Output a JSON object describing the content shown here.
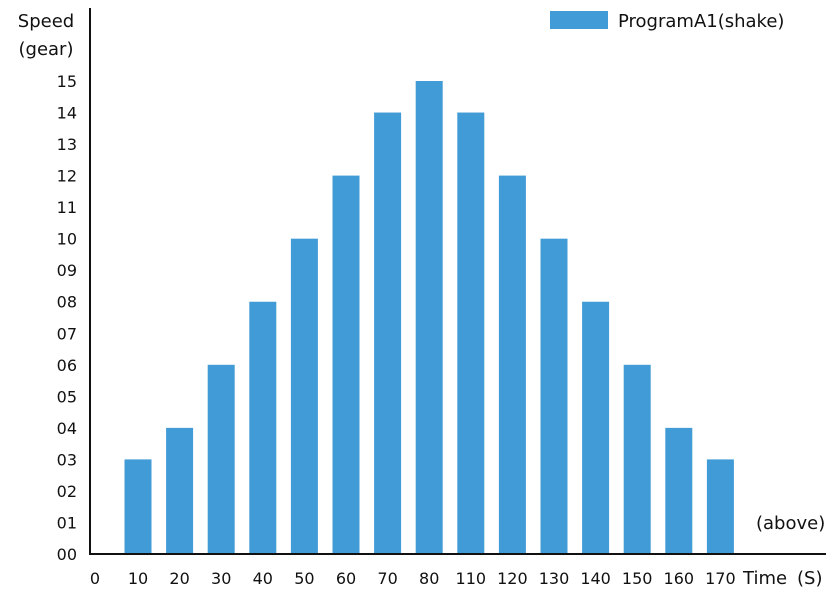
{
  "chart_data": {
    "type": "bar",
    "title": "",
    "ylabel_lines": [
      "Speed",
      "(gear)"
    ],
    "xlabel": "Time",
    "xlabel_unit": "(S)",
    "annotation": "(above)",
    "origin_label": "0",
    "categories": [
      "10",
      "20",
      "30",
      "40",
      "50",
      "60",
      "70",
      "80",
      "110",
      "120",
      "130",
      "140",
      "150",
      "160",
      "170"
    ],
    "series": [
      {
        "name": "ProgramA1(shake)",
        "color": "#419bd6",
        "values": [
          3,
          4,
          6,
          8,
          10,
          12,
          14,
          15,
          14,
          12,
          10,
          8,
          6,
          4,
          3
        ]
      }
    ],
    "y_ticks": [
      "00",
      "01",
      "02",
      "03",
      "04",
      "05",
      "06",
      "07",
      "08",
      "09",
      "10",
      "11",
      "12",
      "13",
      "14",
      "15"
    ],
    "ylim": [
      0,
      15
    ],
    "grid": false,
    "legend_position": "top-right",
    "axis_color": "#111111"
  }
}
